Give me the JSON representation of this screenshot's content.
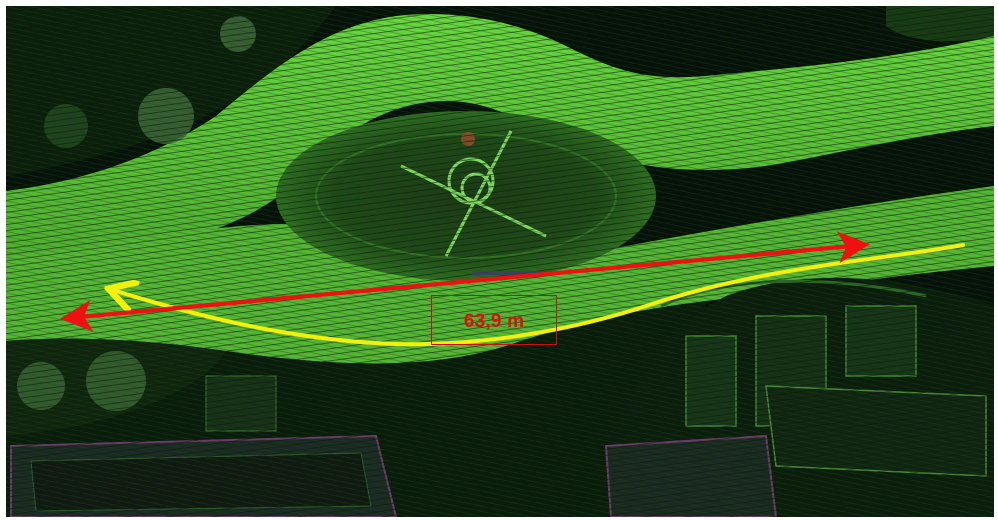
{
  "measurement": {
    "label": "63,9 m"
  },
  "colors": {
    "background": "#050805",
    "road_green": "#5ec83a",
    "vegetation_green": "#2f7a22",
    "measure_line": "#ee1111",
    "path_line": "#f3f10c",
    "label": "#e30d0d"
  },
  "icons": {
    "measure_arrow": "double-headed-arrow",
    "path": "curved-arrow"
  }
}
